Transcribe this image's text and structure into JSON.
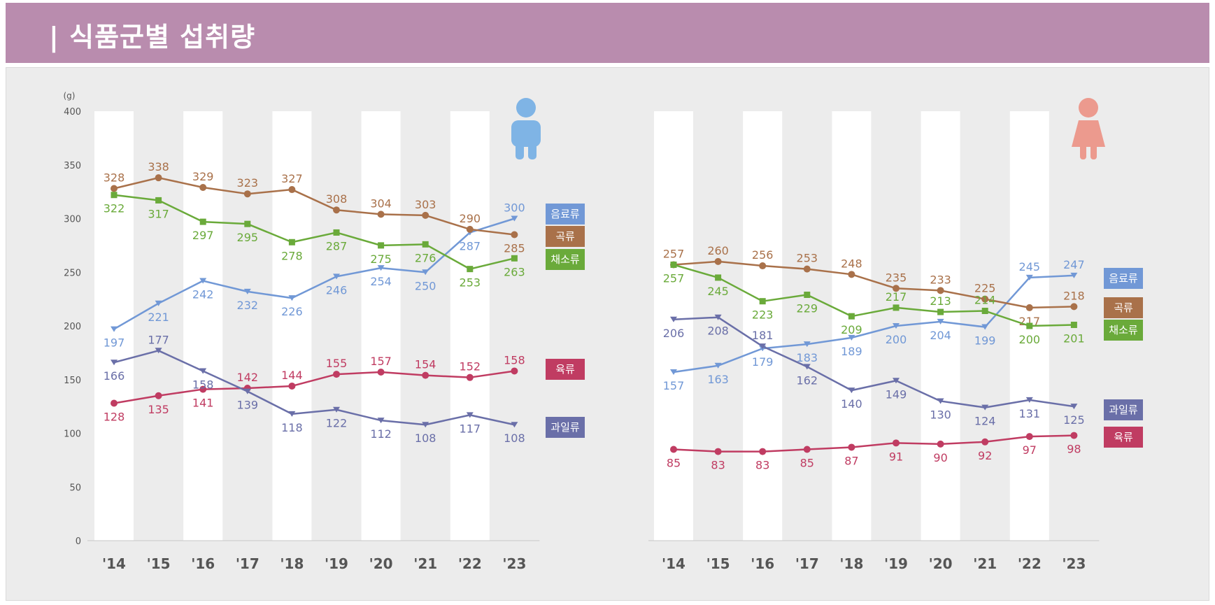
{
  "page_title": "식품군별 섭취량",
  "colors": {
    "header": "#b98cae",
    "panel": "#ececec",
    "음료류": "#7198d6",
    "곡류": "#a9714a",
    "채소류": "#6aaa3a",
    "육류": "#c03c62",
    "과일류": "#6a6fa8",
    "male_icon": "#7fb4e5",
    "female_icon": "#ec9a8e"
  },
  "icons": {
    "male": "male-figure-icon",
    "female": "female-figure-icon"
  },
  "chart_data": [
    {
      "type": "line",
      "unit_label": "(g)",
      "ylim": [
        0,
        400
      ],
      "yticks": [
        0,
        50,
        100,
        150,
        200,
        250,
        300,
        350,
        400
      ],
      "categories": [
        "'14",
        "'15",
        "'16",
        "'17",
        "'18",
        "'19",
        "'20",
        "'21",
        "'22",
        "'23"
      ],
      "alternating_column_bands": true,
      "series": [
        {
          "name": "음료류",
          "values": [
            197,
            221,
            242,
            232,
            226,
            246,
            254,
            250,
            287,
            300
          ]
        },
        {
          "name": "곡류",
          "values": [
            328,
            338,
            329,
            323,
            327,
            308,
            304,
            303,
            290,
            285
          ]
        },
        {
          "name": "채소류",
          "values": [
            322,
            317,
            297,
            295,
            278,
            287,
            275,
            276,
            253,
            263
          ]
        },
        {
          "name": "육류",
          "values": [
            128,
            135,
            141,
            142,
            144,
            155,
            157,
            154,
            152,
            158
          ]
        },
        {
          "name": "과일류",
          "values": [
            166,
            177,
            158,
            139,
            118,
            122,
            112,
            108,
            117,
            108
          ]
        }
      ]
    },
    {
      "type": "line",
      "ylim": [
        0,
        400
      ],
      "categories": [
        "'14",
        "'15",
        "'16",
        "'17",
        "'18",
        "'19",
        "'20",
        "'21",
        "'22",
        "'23"
      ],
      "alternating_column_bands": true,
      "series": [
        {
          "name": "음료류",
          "values": [
            157,
            163,
            179,
            183,
            189,
            200,
            204,
            199,
            245,
            247
          ]
        },
        {
          "name": "곡류",
          "values": [
            257,
            260,
            256,
            253,
            248,
            235,
            233,
            225,
            217,
            218
          ]
        },
        {
          "name": "채소류",
          "values": [
            257,
            245,
            223,
            229,
            209,
            217,
            213,
            214,
            200,
            201
          ]
        },
        {
          "name": "과일류",
          "values": [
            206,
            208,
            181,
            162,
            140,
            149,
            130,
            124,
            131,
            125
          ]
        },
        {
          "name": "육류",
          "values": [
            85,
            83,
            83,
            85,
            87,
            91,
            90,
            92,
            97,
            98
          ]
        }
      ]
    }
  ]
}
